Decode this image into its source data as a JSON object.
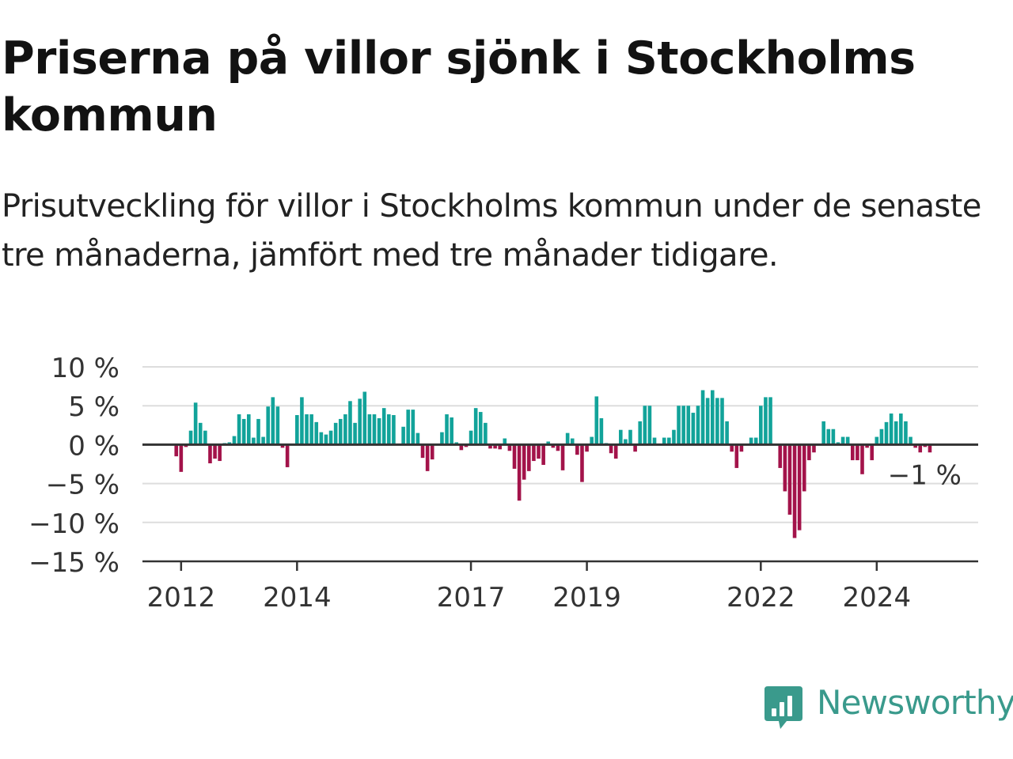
{
  "title": "Priserna på villor sjönk i Stockholms kommun",
  "subtitle": "Prisutveckling för villor i Stockholms kommun under de senaste tre månaderna, jämfört med tre månader tidigare.",
  "brand": {
    "name": "Newsworthy"
  },
  "colors": {
    "positive": "#12a39a",
    "negative": "#a3134a",
    "grid": "#dddddd",
    "axis": "#333333",
    "text": "#121212",
    "brand": "#3a9a8c"
  },
  "chart_data": {
    "type": "bar",
    "title": "Priserna på villor sjönk i Stockholms kommun",
    "subtitle": "Prisutveckling för villor i Stockholms kommun under de senaste tre månaderna, jämfört med tre månader tidigare.",
    "xlabel": "",
    "ylabel": "",
    "unit": "%",
    "ylim": [
      -15,
      10
    ],
    "yticks": [
      10,
      5,
      0,
      -5,
      -10,
      -15
    ],
    "ytick_labels": [
      "10 %",
      "5 %",
      "0 %",
      "−5 %",
      "−10 %",
      "−15 %"
    ],
    "xlim": [
      "2011-05",
      "2025-10"
    ],
    "xticks": [
      "2012-01",
      "2014-01",
      "2017-01",
      "2019-01",
      "2022-01",
      "2024-01"
    ],
    "xtick_labels": [
      "2012",
      "2014",
      "2017",
      "2019",
      "2022",
      "2024"
    ],
    "grid": true,
    "annotations": [
      {
        "text": "−1 %",
        "target": "last"
      }
    ],
    "start": "2011-12",
    "frequency": "monthly",
    "values": [
      -1.5,
      -3.5,
      -0.3,
      1.8,
      5.4,
      2.8,
      1.8,
      -2.4,
      -1.8,
      -2.1,
      0.2,
      0.3,
      1.1,
      3.9,
      3.3,
      3.9,
      0.9,
      3.3,
      1.0,
      4.9,
      6.1,
      4.9,
      -0.4,
      -2.9,
      0,
      3.8,
      6.1,
      3.9,
      3.9,
      2.9,
      1.6,
      1.3,
      1.8,
      2.8,
      3.3,
      3.9,
      5.6,
      2.8,
      5.9,
      6.8,
      3.9,
      3.9,
      3.4,
      4.7,
      3.9,
      3.8,
      0,
      2.3,
      4.5,
      4.5,
      1.5,
      -1.7,
      -3.4,
      -1.9,
      0,
      1.6,
      3.9,
      3.5,
      0.3,
      -0.7,
      -0.3,
      1.8,
      4.7,
      4.2,
      2.8,
      -0.5,
      -0.5,
      -0.6,
      0.8,
      -0.8,
      -3.1,
      -7.2,
      -4.5,
      -3.4,
      -2.1,
      -1.8,
      -2.6,
      0.4,
      -0.4,
      -0.8,
      -3.3,
      1.5,
      0.8,
      -1.3,
      -4.8,
      -0.9,
      1.0,
      6.2,
      3.4,
      0.2,
      -1.1,
      -1.8,
      1.9,
      0.7,
      1.9,
      -0.9,
      3.0,
      5.0,
      5.0,
      0.9,
      0,
      0.9,
      0.9,
      1.9,
      5.0,
      5.0,
      5.0,
      4.1,
      5.0,
      7.0,
      6.0,
      7.0,
      6.0,
      6.0,
      3.0,
      -0.9,
      -3.0,
      -0.9,
      0,
      0.9,
      0.9,
      5.0,
      6.1,
      6.1,
      0,
      -3.0,
      -6.0,
      -9.0,
      -12.0,
      -11.0,
      -6.0,
      -2.0,
      -1.0,
      0,
      3.0,
      2.0,
      2.0,
      0.3,
      1.0,
      1.0,
      -2.0,
      -2.0,
      -3.8,
      -0.4,
      -2.0,
      1.0,
      2.0,
      2.9,
      4.0,
      3.0,
      4.0,
      3.0,
      1.0,
      -0.4,
      -1.0,
      -0.3,
      -1.0
    ]
  }
}
